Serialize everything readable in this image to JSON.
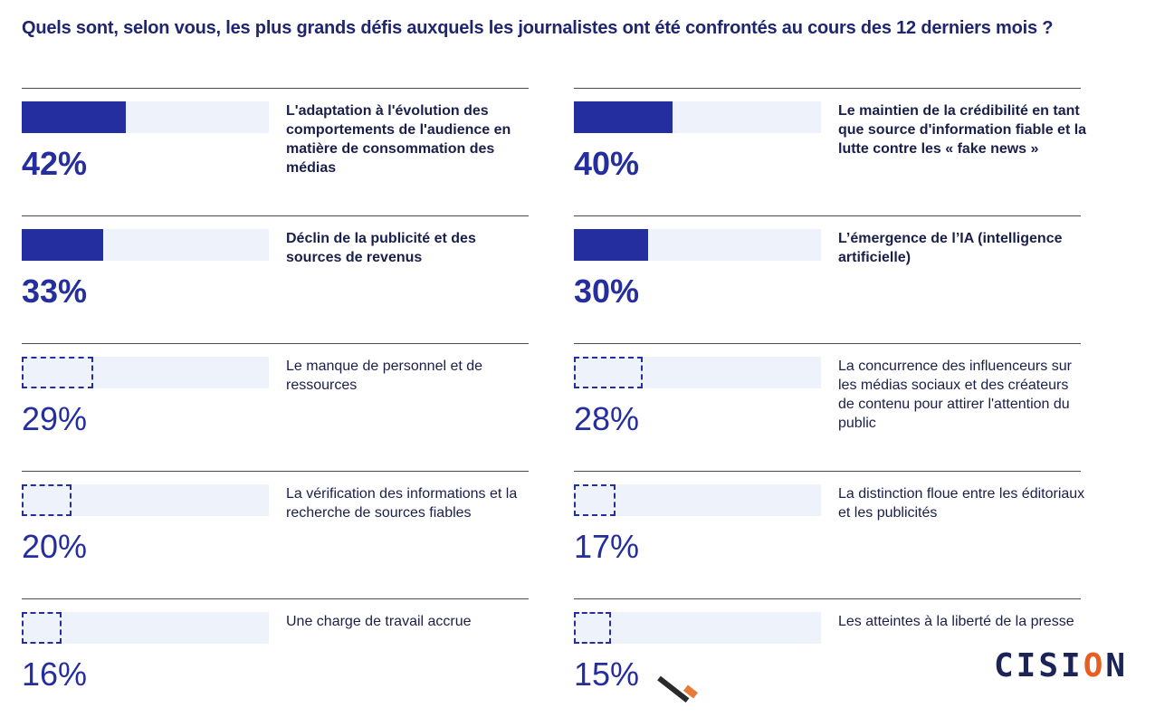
{
  "chart_data": {
    "type": "bar",
    "title": "Quels sont, selon vous, les plus grands défis auxquels les journalistes ont été confrontés au cours des 12 derniers mois ?",
    "unit": "%",
    "items": [
      {
        "label": "L'adaptation à l'évolution des comportements de l'audience en matière de consommation des médias",
        "value": 42,
        "value_label": "42%",
        "emphasis": true
      },
      {
        "label": "Le maintien de la crédibilité en tant que source d'information fiable et la lutte contre les « fake news »",
        "value": 40,
        "value_label": "40%",
        "emphasis": true
      },
      {
        "label": "Déclin de la publicité et des sources de revenus",
        "value": 33,
        "value_label": "33%",
        "emphasis": true
      },
      {
        "label": "L’émergence de l’IA (intelligence artificielle)",
        "value": 30,
        "value_label": "30%",
        "emphasis": true
      },
      {
        "label": "Le manque de personnel et de ressources",
        "value": 29,
        "value_label": "29%",
        "emphasis": false
      },
      {
        "label": "La concurrence des influenceurs sur les médias sociaux et des créateurs de contenu pour attirer l'attention du public",
        "value": 28,
        "value_label": "28%",
        "emphasis": false
      },
      {
        "label": "La vérification des informations et la recherche de sources fiables",
        "value": 20,
        "value_label": "20%",
        "emphasis": false
      },
      {
        "label": "La distinction floue entre les éditoriaux et les publicités",
        "value": 17,
        "value_label": "17%",
        "emphasis": false
      },
      {
        "label": "Une charge de travail accrue",
        "value": 16,
        "value_label": "16%",
        "emphasis": false
      },
      {
        "label": "Les atteintes à la liberté de la presse",
        "value": 15,
        "value_label": "15%",
        "emphasis": false
      }
    ],
    "xlim": [
      0,
      100
    ],
    "colors": {
      "bar": "#252e9e",
      "track": "#edf2fb",
      "title": "#1f2570"
    }
  },
  "brand": {
    "logo_text_a": "CISI",
    "logo_text_b": "O",
    "logo_text_c": "N",
    "accent_color": "#e85d20"
  }
}
